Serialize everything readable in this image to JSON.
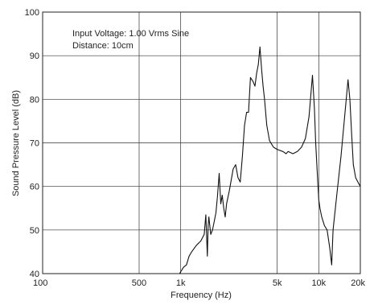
{
  "chart_data": {
    "type": "line",
    "title": "",
    "xlabel": "Frequency (Hz)",
    "ylabel": "Sound Pressure Level (dB)",
    "xscale": "log",
    "xlim": [
      100,
      20000
    ],
    "ylim": [
      40,
      100
    ],
    "grid": true,
    "x_ticks": [
      {
        "value": 100,
        "label": "100"
      },
      {
        "value": 500,
        "label": "500"
      },
      {
        "value": 1000,
        "label": "1k"
      },
      {
        "value": 5000,
        "label": "5k"
      },
      {
        "value": 10000,
        "label": "10k"
      },
      {
        "value": 20000,
        "label": "20k"
      }
    ],
    "y_ticks": [
      40,
      50,
      60,
      70,
      80,
      90,
      100
    ],
    "annotations": [
      "Input Voltage: 1.00 Vrms Sine",
      "Distance: 10cm"
    ],
    "series": [
      {
        "points": [
          [
            100,
            40
          ],
          [
            500,
            40
          ],
          [
            980,
            40
          ],
          [
            1050,
            41.5
          ],
          [
            1100,
            42
          ],
          [
            1150,
            44
          ],
          [
            1200,
            45
          ],
          [
            1300,
            46.5
          ],
          [
            1400,
            47.5
          ],
          [
            1480,
            49
          ],
          [
            1520,
            53.5
          ],
          [
            1560,
            44
          ],
          [
            1580,
            51
          ],
          [
            1600,
            53
          ],
          [
            1650,
            49
          ],
          [
            1700,
            50
          ],
          [
            1750,
            52
          ],
          [
            1800,
            54
          ],
          [
            1850,
            58
          ],
          [
            1900,
            63
          ],
          [
            1950,
            56
          ],
          [
            2000,
            58
          ],
          [
            2050,
            55
          ],
          [
            2100,
            53
          ],
          [
            2150,
            56
          ],
          [
            2250,
            59
          ],
          [
            2400,
            64
          ],
          [
            2500,
            65
          ],
          [
            2600,
            62
          ],
          [
            2700,
            61
          ],
          [
            2800,
            67
          ],
          [
            2900,
            74
          ],
          [
            3000,
            77
          ],
          [
            3100,
            77
          ],
          [
            3200,
            85
          ],
          [
            3350,
            84
          ],
          [
            3450,
            83
          ],
          [
            3550,
            86
          ],
          [
            3650,
            88
          ],
          [
            3750,
            92
          ],
          [
            3850,
            87
          ],
          [
            3950,
            83
          ],
          [
            4050,
            80
          ],
          [
            4200,
            74
          ],
          [
            4400,
            70.5
          ],
          [
            4700,
            69
          ],
          [
            5000,
            68.5
          ],
          [
            5500,
            68
          ],
          [
            5800,
            67.5
          ],
          [
            6000,
            68
          ],
          [
            6500,
            67.5
          ],
          [
            7000,
            68
          ],
          [
            7500,
            69
          ],
          [
            8000,
            71
          ],
          [
            8500,
            76
          ],
          [
            9000,
            85.5
          ],
          [
            9300,
            78
          ],
          [
            9500,
            70
          ],
          [
            9800,
            62
          ],
          [
            10000,
            57
          ],
          [
            10200,
            55
          ],
          [
            10500,
            53
          ],
          [
            11000,
            51
          ],
          [
            11500,
            50
          ],
          [
            12000,
            46
          ],
          [
            12400,
            42
          ],
          [
            12700,
            50
          ],
          [
            13500,
            58
          ],
          [
            14500,
            67
          ],
          [
            15500,
            77
          ],
          [
            16300,
            84.5
          ],
          [
            16800,
            80
          ],
          [
            17300,
            72
          ],
          [
            17800,
            65
          ],
          [
            18500,
            62
          ],
          [
            19200,
            61
          ],
          [
            20000,
            60
          ]
        ]
      }
    ]
  }
}
